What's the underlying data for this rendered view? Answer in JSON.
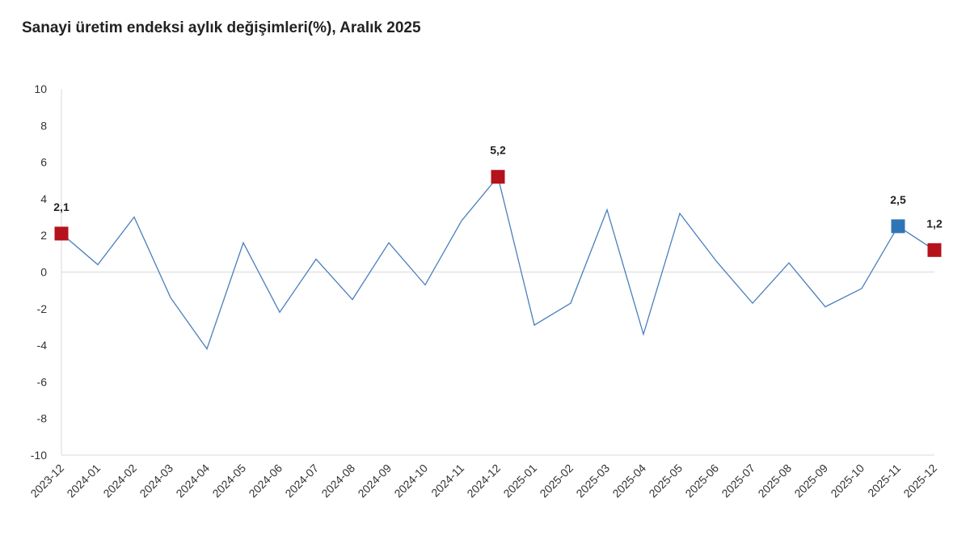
{
  "title": "Sanayi üretim endeksi aylık değişimleri(%), Aralık 2025",
  "chart_data": {
    "type": "line",
    "title": "Sanayi üretim endeksi aylık değişimleri(%), Aralık 2025",
    "xlabel": "",
    "ylabel": "",
    "ylim": [
      -10,
      10
    ],
    "yticks": [
      "10",
      "8",
      "6",
      "4",
      "2",
      "0",
      "-2",
      "-4",
      "-6",
      "-8",
      "-10"
    ],
    "grid": false,
    "legend": "none",
    "categories": [
      "2023-12",
      "2024-01",
      "2024-02",
      "2024-03",
      "2024-04",
      "2024-05",
      "2024-06",
      "2024-07",
      "2024-08",
      "2024-09",
      "2024-10",
      "2024-11",
      "2024-12",
      "2025-01",
      "2025-02",
      "2025-03",
      "2025-04",
      "2025-05",
      "2025-06",
      "2025-07",
      "2025-08",
      "2025-09",
      "2025-10",
      "2025-11",
      "2025-12"
    ],
    "series": [
      {
        "values": [
          2.1,
          0.4,
          3.0,
          -1.4,
          -4.2,
          1.6,
          -2.2,
          0.7,
          -1.5,
          1.6,
          -0.7,
          2.8,
          5.2,
          -2.9,
          -1.7,
          3.4,
          -3.4,
          3.2,
          0.6,
          -1.7,
          0.5,
          -1.9,
          -0.9,
          2.5,
          1.2
        ],
        "color": "#4a7ebb"
      }
    ],
    "highlights": [
      {
        "category": "2023-12",
        "label": "2,1",
        "color": "#b5121b"
      },
      {
        "category": "2024-12",
        "label": "5,2",
        "color": "#b5121b"
      },
      {
        "category": "2025-11",
        "label": "2,5",
        "color": "#2e75b6"
      },
      {
        "category": "2025-12",
        "label": "1,2",
        "color": "#b5121b"
      }
    ],
    "colors": {
      "axis": "#d9d9d9",
      "zero_line": "#d9d9d9",
      "text": "#333333"
    }
  }
}
